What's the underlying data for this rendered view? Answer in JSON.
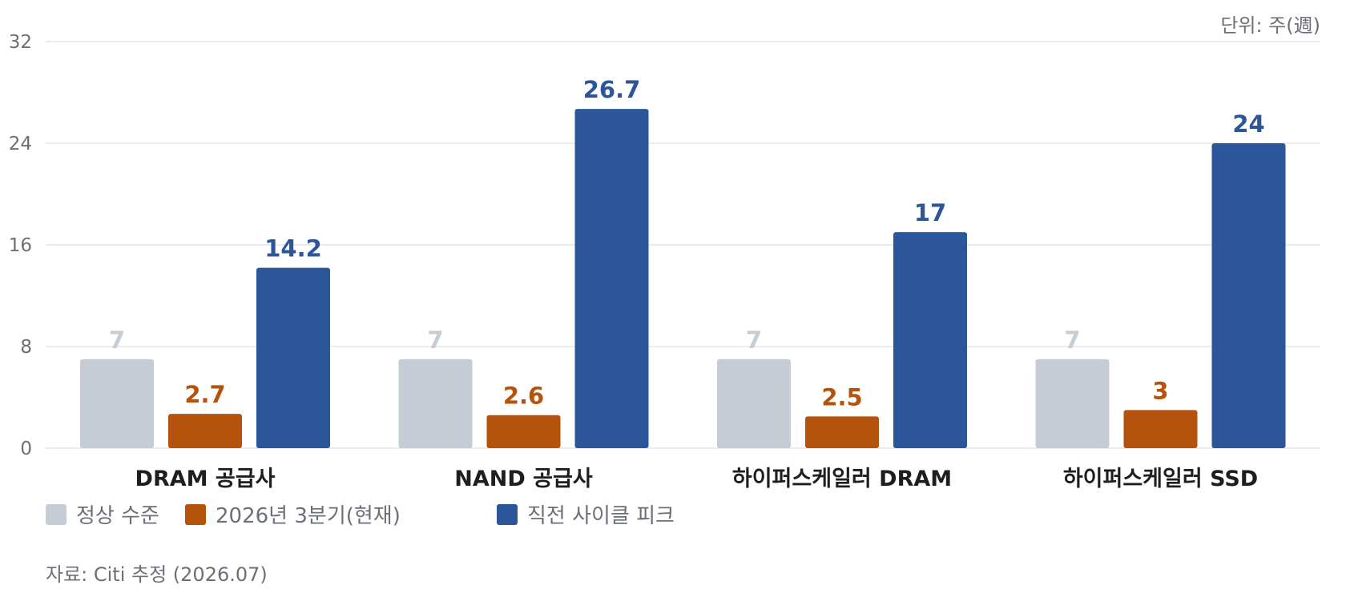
{
  "unit_label": "단위: 주(週)",
  "source": "자료: Citi 추정 (2026.07)",
  "colors": {
    "normal": "#c5ccd6",
    "current": "#b5520c",
    "peak": "#2b579a",
    "grid": "#e3e6ea",
    "axis_text": "#6b6f76",
    "category_text": "#1e1e1e"
  },
  "chart_data": {
    "type": "bar",
    "categories": [
      "DRAM 공급사",
      "NAND 공급사",
      "하이퍼스케일러 DRAM",
      "하이퍼스케일러 SSD"
    ],
    "series": [
      {
        "name": "정상 수준",
        "values": [
          7,
          7,
          7,
          7
        ]
      },
      {
        "name": "2026년 3분기(현재)",
        "values": [
          2.7,
          2.6,
          2.5,
          3
        ]
      },
      {
        "name": "직전 사이클 피크",
        "values": [
          14.2,
          26.7,
          17,
          24
        ]
      }
    ],
    "ylim": [
      0,
      32
    ],
    "yticks": [
      0,
      8,
      16,
      24,
      32
    ],
    "grid": true,
    "legend_position": "bottom-left"
  }
}
